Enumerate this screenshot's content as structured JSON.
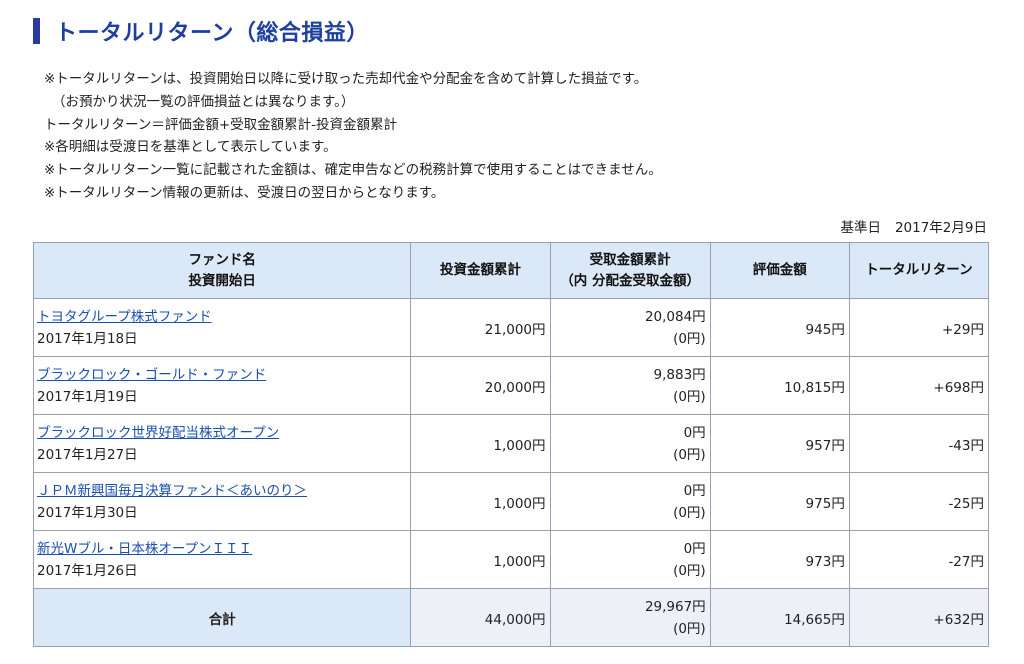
{
  "title": "トータルリターン（総合損益）",
  "notes": [
    "※トータルリターンは、投資開始日以降に受け取った売却代金や分配金を含めて計算した損益です。",
    "（お預かり状況一覧の評価損益とは異なります。）",
    "トータルリターン＝評価金額+受取金額累計-投資金額累計",
    "※各明細は受渡日を基準として表示しています。",
    "※トータルリターン一覧に記載された金額は、確定申告などの税務計算で使用することはできません。",
    "※トータルリターン情報の更新は、受渡日の翌日からとなります。"
  ],
  "base_date": {
    "label": "基準日",
    "value": "2017年2月9日"
  },
  "table": {
    "headers": {
      "fund_name": "ファンド名",
      "start_date": "投資開始日",
      "invested": "投資金額累計",
      "received": "受取金額累計",
      "received_sub": "（内 分配金受取金額）",
      "valuation": "評価金額",
      "total_return": "トータルリターン"
    },
    "rows": [
      {
        "fund": "トヨタグループ株式ファンド",
        "date": "2017年1月18日",
        "invested": "21,000円",
        "received": "20,084円",
        "dividend": "(0円)",
        "valuation": "945円",
        "total_return": "+29円"
      },
      {
        "fund": "ブラックロック・ゴールド・ファンド",
        "date": "2017年1月19日",
        "invested": "20,000円",
        "received": "9,883円",
        "dividend": "(0円)",
        "valuation": "10,815円",
        "total_return": "+698円"
      },
      {
        "fund": "ブラックロック世界好配当株式オープン",
        "date": "2017年1月27日",
        "invested": "1,000円",
        "received": "0円",
        "dividend": "(0円)",
        "valuation": "957円",
        "total_return": "-43円"
      },
      {
        "fund": "ＪＰＭ新興国毎月決算ファンド＜あいのり＞",
        "date": "2017年1月30日",
        "invested": "1,000円",
        "received": "0円",
        "dividend": "(0円)",
        "valuation": "975円",
        "total_return": "-25円"
      },
      {
        "fund": "新光Wブル・日本株オープンＩＩＩ",
        "date": "2017年1月26日",
        "invested": "1,000円",
        "received": "0円",
        "dividend": "(0円)",
        "valuation": "973円",
        "total_return": "-27円"
      }
    ],
    "total": {
      "label": "合計",
      "invested": "44,000円",
      "received": "29,967円",
      "dividend": "(0円)",
      "valuation": "14,665円",
      "total_return": "+632円"
    }
  },
  "colors": {
    "title": "#1d3fa0",
    "title_accent": "#2a3a9e",
    "header_bg": "#dbe8f8",
    "link": "#1a4fb0",
    "border": "#9aa0b3"
  }
}
